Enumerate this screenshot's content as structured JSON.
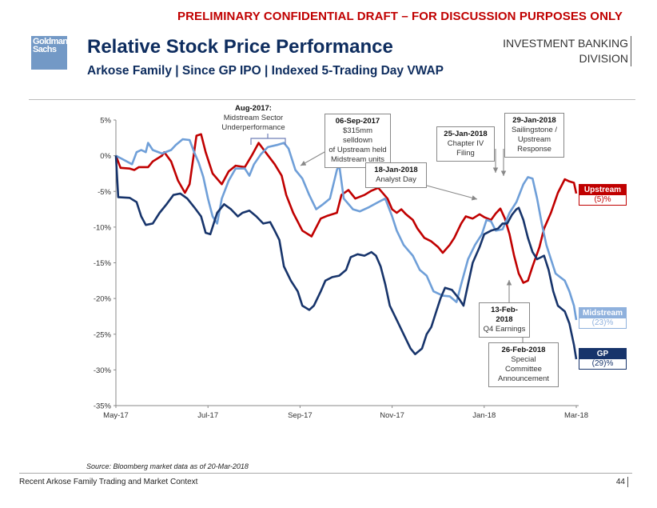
{
  "header": {
    "draft_banner": "PRELIMINARY CONFIDENTIAL DRAFT – FOR DISCUSSION PURPOSES ONLY",
    "logo_line1": "Goldman",
    "logo_line2": "Sachs",
    "title": "Relative Stock Price Performance",
    "subtitle": "Arkose Family | Since GP IPO | Indexed 5-Trading Day VWAP",
    "division_line1": "INVESTMENT BANKING",
    "division_line2": "DIVISION"
  },
  "colors": {
    "upstream": "#c00000",
    "midstream": "#6f9fd8",
    "gp": "#17346b",
    "draft": "#c00000",
    "title": "#0d2c5e"
  },
  "chart_data": {
    "type": "line",
    "title": "Relative Stock Price Performance",
    "xlabel": "",
    "ylabel": "",
    "x_unit": "months since May-17 (0 = May-17, 10 = Mar-18)",
    "xlim": [
      0,
      10
    ],
    "ylim": [
      -35,
      5
    ],
    "yticks": [
      5,
      0,
      -5,
      -10,
      -15,
      -20,
      -25,
      -30,
      -35
    ],
    "ytick_labels": [
      "5%",
      "0%",
      "-5%",
      "-10%",
      "-15%",
      "-20%",
      "-25%",
      "-30%",
      "-35%"
    ],
    "xticks": [
      0,
      2,
      4,
      6,
      8,
      10
    ],
    "xtick_labels": [
      "May-17",
      "Jul-17",
      "Sep-17",
      "Nov-17",
      "Jan-18",
      "Mar-18"
    ],
    "grid": false,
    "legend": "end-of-line labels (right)",
    "series": [
      {
        "name": "Upstream",
        "end_label": "Upstream",
        "end_value": "(5)%",
        "points": [
          [
            0,
            0
          ],
          [
            0.1,
            -1.7
          ],
          [
            0.3,
            -1.8
          ],
          [
            0.4,
            -2.0
          ],
          [
            0.5,
            -1.6
          ],
          [
            0.7,
            -1.6
          ],
          [
            0.8,
            -0.8
          ],
          [
            1.0,
            0
          ],
          [
            1.05,
            0.5
          ],
          [
            1.2,
            -0.8
          ],
          [
            1.35,
            -3.5
          ],
          [
            1.5,
            -5.2
          ],
          [
            1.6,
            -4.0
          ],
          [
            1.75,
            2.8
          ],
          [
            1.85,
            3.0
          ],
          [
            1.95,
            0.5
          ],
          [
            2.1,
            -2.5
          ],
          [
            2.3,
            -4.0
          ],
          [
            2.45,
            -2.2
          ],
          [
            2.6,
            -1.4
          ],
          [
            2.8,
            -1.6
          ],
          [
            2.95,
            0
          ],
          [
            3.1,
            1.8
          ],
          [
            3.25,
            0.5
          ],
          [
            3.45,
            -1.2
          ],
          [
            3.6,
            -2.8
          ],
          [
            3.7,
            -5.5
          ],
          [
            3.85,
            -8.0
          ],
          [
            4.05,
            -10.5
          ],
          [
            4.25,
            -11.3
          ],
          [
            4.45,
            -8.8
          ],
          [
            4.6,
            -8.4
          ],
          [
            4.8,
            -8.0
          ],
          [
            4.9,
            -5.5
          ],
          [
            5.05,
            -4.8
          ],
          [
            5.2,
            -6.0
          ],
          [
            5.4,
            -5.5
          ],
          [
            5.55,
            -4.9
          ],
          [
            5.7,
            -4.5
          ],
          [
            5.9,
            -6.0
          ],
          [
            6.0,
            -7.5
          ],
          [
            6.1,
            -8.0
          ],
          [
            6.2,
            -7.5
          ],
          [
            6.3,
            -8.2
          ],
          [
            6.45,
            -9.0
          ],
          [
            6.55,
            -10.2
          ],
          [
            6.7,
            -11.5
          ],
          [
            6.85,
            -12.0
          ],
          [
            7.0,
            -12.8
          ],
          [
            7.1,
            -13.6
          ],
          [
            7.25,
            -12.5
          ],
          [
            7.35,
            -11.5
          ],
          [
            7.5,
            -9.5
          ],
          [
            7.6,
            -8.5
          ],
          [
            7.75,
            -8.8
          ],
          [
            7.9,
            -8.2
          ],
          [
            8.0,
            -8.6
          ],
          [
            8.15,
            -9.0
          ],
          [
            8.25,
            -8.1
          ],
          [
            8.35,
            -7.4
          ],
          [
            8.45,
            -8.8
          ],
          [
            8.55,
            -11.0
          ],
          [
            8.65,
            -14.0
          ],
          [
            8.75,
            -16.5
          ],
          [
            8.85,
            -17.8
          ],
          [
            8.95,
            -17.5
          ],
          [
            9.05,
            -15.5
          ],
          [
            9.2,
            -12.8
          ],
          [
            9.3,
            -10.2
          ],
          [
            9.45,
            -8.0
          ],
          [
            9.6,
            -5.2
          ],
          [
            9.75,
            -3.3
          ],
          [
            9.85,
            -3.6
          ],
          [
            9.95,
            -3.8
          ],
          [
            10.0,
            -5.3
          ]
        ]
      },
      {
        "name": "Midstream",
        "end_label": "Midstream",
        "end_value": "(23)%",
        "points": [
          [
            0,
            0
          ],
          [
            0.15,
            -0.5
          ],
          [
            0.35,
            -1.2
          ],
          [
            0.45,
            0.5
          ],
          [
            0.55,
            0.8
          ],
          [
            0.65,
            0.5
          ],
          [
            0.7,
            1.8
          ],
          [
            0.8,
            0.8
          ],
          [
            1.0,
            0.3
          ],
          [
            1.2,
            0.8
          ],
          [
            1.3,
            1.5
          ],
          [
            1.45,
            2.3
          ],
          [
            1.6,
            2.2
          ],
          [
            1.7,
            0.5
          ],
          [
            1.8,
            -1.0
          ],
          [
            1.9,
            -3.0
          ],
          [
            2.0,
            -6.0
          ],
          [
            2.1,
            -8.5
          ],
          [
            2.2,
            -9.5
          ],
          [
            2.3,
            -6.0
          ],
          [
            2.45,
            -3.5
          ],
          [
            2.6,
            -1.8
          ],
          [
            2.8,
            -1.8
          ],
          [
            2.9,
            -2.8
          ],
          [
            3.0,
            -1.2
          ],
          [
            3.15,
            0.2
          ],
          [
            3.3,
            1.2
          ],
          [
            3.5,
            1.5
          ],
          [
            3.65,
            1.8
          ],
          [
            3.75,
            1.0
          ],
          [
            3.9,
            -2.0
          ],
          [
            4.05,
            -3.2
          ],
          [
            4.2,
            -5.5
          ],
          [
            4.35,
            -7.5
          ],
          [
            4.5,
            -6.8
          ],
          [
            4.65,
            -6.0
          ],
          [
            4.8,
            -2.0
          ],
          [
            4.85,
            -1.3
          ],
          [
            4.95,
            -6.0
          ],
          [
            5.15,
            -7.5
          ],
          [
            5.3,
            -7.8
          ],
          [
            5.5,
            -7.2
          ],
          [
            5.7,
            -6.5
          ],
          [
            5.85,
            -6.0
          ],
          [
            6.0,
            -8.5
          ],
          [
            6.1,
            -10.5
          ],
          [
            6.25,
            -12.5
          ],
          [
            6.45,
            -14.0
          ],
          [
            6.6,
            -16.0
          ],
          [
            6.75,
            -16.8
          ],
          [
            6.9,
            -19.0
          ],
          [
            7.1,
            -19.6
          ],
          [
            7.25,
            -19.7
          ],
          [
            7.4,
            -20.5
          ],
          [
            7.5,
            -18.0
          ],
          [
            7.65,
            -14.5
          ],
          [
            7.8,
            -12.5
          ],
          [
            7.95,
            -11.0
          ],
          [
            8.05,
            -9.0
          ],
          [
            8.15,
            -9.2
          ],
          [
            8.25,
            -10.5
          ],
          [
            8.4,
            -10.3
          ],
          [
            8.55,
            -8.0
          ],
          [
            8.7,
            -6.5
          ],
          [
            8.85,
            -4.0
          ],
          [
            8.95,
            -3.0
          ],
          [
            9.05,
            -3.2
          ],
          [
            9.15,
            -6.0
          ],
          [
            9.25,
            -9.5
          ],
          [
            9.35,
            -12.5
          ],
          [
            9.45,
            -14.5
          ],
          [
            9.55,
            -16.5
          ],
          [
            9.65,
            -17.0
          ],
          [
            9.75,
            -17.5
          ],
          [
            9.85,
            -19.0
          ],
          [
            9.95,
            -21.0
          ],
          [
            10.0,
            -23.0
          ]
        ]
      },
      {
        "name": "GP",
        "end_label": "GP",
        "end_value": "(29)%",
        "points": [
          [
            0,
            0
          ],
          [
            0.05,
            -5.8
          ],
          [
            0.3,
            -5.9
          ],
          [
            0.45,
            -6.5
          ],
          [
            0.55,
            -8.5
          ],
          [
            0.65,
            -9.7
          ],
          [
            0.8,
            -9.5
          ],
          [
            0.95,
            -8.0
          ],
          [
            1.1,
            -6.8
          ],
          [
            1.25,
            -5.5
          ],
          [
            1.4,
            -5.3
          ],
          [
            1.55,
            -6.0
          ],
          [
            1.7,
            -7.2
          ],
          [
            1.85,
            -8.5
          ],
          [
            1.95,
            -10.8
          ],
          [
            2.05,
            -11.0
          ],
          [
            2.2,
            -8.0
          ],
          [
            2.35,
            -6.8
          ],
          [
            2.5,
            -7.5
          ],
          [
            2.65,
            -8.5
          ],
          [
            2.75,
            -8.0
          ],
          [
            2.9,
            -7.7
          ],
          [
            3.05,
            -8.5
          ],
          [
            3.2,
            -9.5
          ],
          [
            3.35,
            -9.3
          ],
          [
            3.45,
            -10.5
          ],
          [
            3.55,
            -11.8
          ],
          [
            3.65,
            -15.5
          ],
          [
            3.8,
            -17.5
          ],
          [
            3.95,
            -19.0
          ],
          [
            4.05,
            -21.0
          ],
          [
            4.2,
            -21.6
          ],
          [
            4.3,
            -21.0
          ],
          [
            4.45,
            -19.0
          ],
          [
            4.55,
            -17.5
          ],
          [
            4.7,
            -17.0
          ],
          [
            4.85,
            -16.8
          ],
          [
            5.0,
            -16.0
          ],
          [
            5.1,
            -14.2
          ],
          [
            5.25,
            -13.8
          ],
          [
            5.4,
            -14.0
          ],
          [
            5.55,
            -13.5
          ],
          [
            5.65,
            -14.0
          ],
          [
            5.75,
            -15.5
          ],
          [
            5.85,
            -18.0
          ],
          [
            5.95,
            -21.0
          ],
          [
            6.1,
            -23.0
          ],
          [
            6.25,
            -25.0
          ],
          [
            6.4,
            -27.0
          ],
          [
            6.5,
            -27.8
          ],
          [
            6.65,
            -27.0
          ],
          [
            6.75,
            -25.0
          ],
          [
            6.85,
            -24.0
          ],
          [
            6.95,
            -22.0
          ],
          [
            7.05,
            -20.0
          ],
          [
            7.15,
            -18.5
          ],
          [
            7.3,
            -18.8
          ],
          [
            7.45,
            -20.0
          ],
          [
            7.55,
            -21.0
          ],
          [
            7.65,
            -18.0
          ],
          [
            7.75,
            -15.0
          ],
          [
            7.9,
            -12.8
          ],
          [
            8.0,
            -11.0
          ],
          [
            8.15,
            -10.5
          ],
          [
            8.3,
            -10.2
          ],
          [
            8.4,
            -9.5
          ],
          [
            8.5,
            -9.5
          ],
          [
            8.6,
            -8.3
          ],
          [
            8.7,
            -7.5
          ],
          [
            8.75,
            -7.3
          ],
          [
            8.85,
            -9.0
          ],
          [
            8.95,
            -11.5
          ],
          [
            9.05,
            -13.5
          ],
          [
            9.15,
            -14.5
          ],
          [
            9.3,
            -14.0
          ],
          [
            9.4,
            -16.0
          ],
          [
            9.5,
            -19.0
          ],
          [
            9.6,
            -21.0
          ],
          [
            9.75,
            -21.8
          ],
          [
            9.85,
            -23.5
          ],
          [
            9.95,
            -26.5
          ],
          [
            10.0,
            -28.5
          ]
        ]
      }
    ],
    "annotations": [
      {
        "date": "Aug-2017:",
        "text": [
          "Midstream Sector",
          "Underperformance"
        ]
      },
      {
        "date": "06-Sep-2017",
        "text": [
          "$315mm selldown",
          "of Upstream held",
          "Midstream units"
        ]
      },
      {
        "date": "18-Jan-2018",
        "text": [
          "Analyst Day"
        ]
      },
      {
        "date": "25-Jan-2018",
        "text": [
          "Chapter IV Filing"
        ]
      },
      {
        "date": "29-Jan-2018",
        "text": [
          "Sailingstone /",
          "Upstream",
          "Response"
        ]
      },
      {
        "date": "13-Feb-2018",
        "text": [
          "Q4 Earnings"
        ]
      },
      {
        "date": "26-Feb-2018",
        "text": [
          "Special Committee",
          "Announcement"
        ]
      }
    ]
  },
  "footer": {
    "source": "Source: Bloomberg market data as of 20-Mar-2018",
    "section": "Recent Arkose Family Trading and Market Context",
    "page_number": "44"
  }
}
